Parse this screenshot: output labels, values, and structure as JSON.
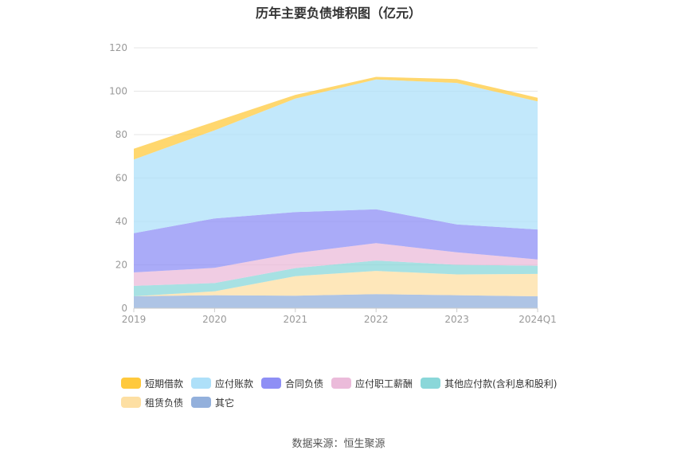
{
  "chart_data": {
    "type": "area",
    "stacked": true,
    "title": "历年主要负债堆积图（亿元）",
    "x": [
      "2019",
      "2020",
      "2021",
      "2022",
      "2023",
      "2024Q1"
    ],
    "ylim": [
      0,
      120
    ],
    "yticks": [
      0,
      20,
      40,
      60,
      80,
      100,
      120
    ],
    "grid": true,
    "legend_position": "bottom",
    "series": [
      {
        "name": "其它",
        "color": "#93b0dc",
        "values": [
          5.5,
          6.0,
          5.8,
          6.5,
          6.0,
          5.5
        ]
      },
      {
        "name": "租赁负债",
        "color": "#fddfa3",
        "values": [
          0,
          1.8,
          9.0,
          10.7,
          9.6,
          10.3
        ]
      },
      {
        "name": "其他应付款(含利息和股利)",
        "color": "#8ad7d9",
        "values": [
          4.8,
          3.8,
          3.7,
          4.8,
          4.4,
          3.8
        ]
      },
      {
        "name": "应付职工薪酬",
        "color": "#ebbbda",
        "values": [
          6.2,
          7.0,
          6.9,
          8.0,
          5.8,
          2.9
        ]
      },
      {
        "name": "合同负债",
        "color": "#8e8ff5",
        "values": [
          18.1,
          22.8,
          18.9,
          15.6,
          12.8,
          13.8
        ]
      },
      {
        "name": "应付账款",
        "color": "#aee0f9",
        "values": [
          33.9,
          40.6,
          52.3,
          59.8,
          65.2,
          59.0
        ]
      },
      {
        "name": "短期借款",
        "color": "#ffc93d",
        "values": [
          5.0,
          4.0,
          1.7,
          1.2,
          1.8,
          1.7
        ]
      }
    ]
  },
  "legend": {
    "rows": [
      [
        "短期借款",
        "应付账款",
        "合同负债",
        "应付职工薪酬",
        "其他应付款(含利息和股利)"
      ],
      [
        "租赁负债",
        "其它"
      ]
    ]
  },
  "source": "数据来源：恒生聚源"
}
